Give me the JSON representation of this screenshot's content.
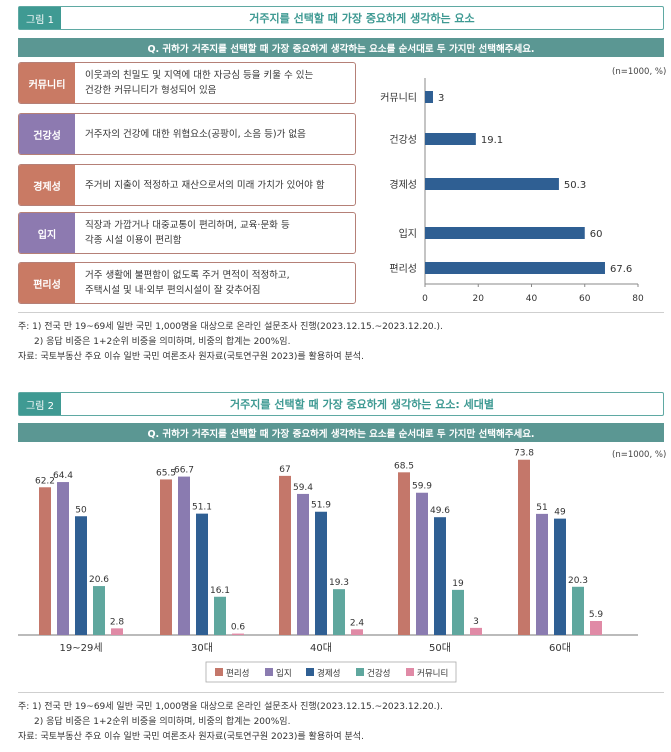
{
  "figure1": {
    "tag": "그림 1",
    "title": "거주지를 선택할 때 가장 중요하게 생각하는 요소",
    "question": "Q. 귀하가 거주지를 선택할 때 가장 중요하게 생각하는 요소를 순서대로 두 가지만 선택해주세요.",
    "unit": "(n=1000, %)",
    "factors": [
      {
        "label": "커뮤니티",
        "desc_line1": "이웃과의 친밀도 및 지역에 대한 자긍심 등을 키울 수 있는",
        "desc_line2": "건강한 커뮤니티가 형성되어 있음",
        "color": "#c97a64"
      },
      {
        "label": "건강성",
        "desc_line1": "거주자의 건강에 대한 위협요소(공팡이, 소음 등)가 없음",
        "desc_line2": "",
        "color": "#8d7ab0"
      },
      {
        "label": "경제성",
        "desc_line1": "주거비 지출이 적정하고 재산으로서의 미래 가치가 있어야 함",
        "desc_line2": "",
        "color": "#c97a64"
      },
      {
        "label": "입지",
        "desc_line1": "직장과 가깝거나 대중교통이 편리하며, 교육·문화 등",
        "desc_line2": "각종 시설 이용이 편리함",
        "color": "#8d7ab0"
      },
      {
        "label": "편리성",
        "desc_line1": "거주 생활에 불편함이 없도록 주거 면적이 적정하고,",
        "desc_line2": "주택시설 및 내·외부 편의시설이 잘 갖추어짐",
        "color": "#c97a64"
      }
    ],
    "notes": [
      "주: 1) 전국 만 19~69세 일반 국민 1,000명을 대상으로 온라인 설문조사 진행(2023.12.15.~2023.12.20.).",
      "2) 응답 비중은 1+2순위 비중을 의미하며, 비중의 합계는 200%임.",
      "자료: 국토부동산 주요 이슈 일반 국민 여론조사 원자료(국토연구원 2023)를 활용하여 분석."
    ]
  },
  "figure2": {
    "tag": "그림 2",
    "title": "거주지를 선택할 때 가장 중요하게 생각하는 요소: 세대별",
    "question": "Q. 귀하가 거주지를 선택할 때 가장 중요하게 생각하는 요소를 순서대로 두 가지만 선택해주세요.",
    "unit": "(n=1000, %)",
    "notes": [
      "주: 1) 전국 만 19~69세 일반 국민 1,000명을 대상으로 온라인 설문조사 진행(2023.12.15.~2023.12.20.).",
      "2) 응답 비중은 1+2순위 비중을 의미하며, 비중의 합계는 200%임.",
      "자료: 국토부동산 주요 이슈 일반 국민 여론조사 원자료(국토연구원 2023)를 활용하여 분석."
    ]
  },
  "chart_data": [
    {
      "type": "bar",
      "orientation": "horizontal",
      "categories": [
        "커뮤니티",
        "건강성",
        "경제성",
        "입지",
        "편리성"
      ],
      "values": [
        3,
        19.1,
        50.3,
        60,
        67.6
      ],
      "xlim": [
        0,
        80
      ],
      "xticks": [
        0,
        20,
        40,
        60,
        80
      ],
      "bar_color": "#2f5f93",
      "grid": false
    },
    {
      "type": "bar",
      "orientation": "vertical",
      "categories": [
        "19~29세",
        "30대",
        "40대",
        "50대",
        "60대"
      ],
      "series": [
        {
          "name": "편리성",
          "color": "#c4776a",
          "values": [
            62.2,
            65.5,
            67,
            68.5,
            73.8
          ]
        },
        {
          "name": "입지",
          "color": "#8a7bb0",
          "values": [
            64.4,
            66.7,
            59.4,
            59.9,
            51
          ]
        },
        {
          "name": "경제성",
          "color": "#2f5f93",
          "values": [
            50,
            51.1,
            51.9,
            49.6,
            49
          ]
        },
        {
          "name": "건강성",
          "color": "#5fa79e",
          "values": [
            20.6,
            16.1,
            19.3,
            19,
            20.3
          ]
        },
        {
          "name": "커뮤니티",
          "color": "#e08aa6",
          "values": [
            2.8,
            0.6,
            2.4,
            3,
            5.9
          ]
        }
      ],
      "ylim": [
        0,
        80
      ],
      "legend": "bottom",
      "grid": false
    }
  ]
}
